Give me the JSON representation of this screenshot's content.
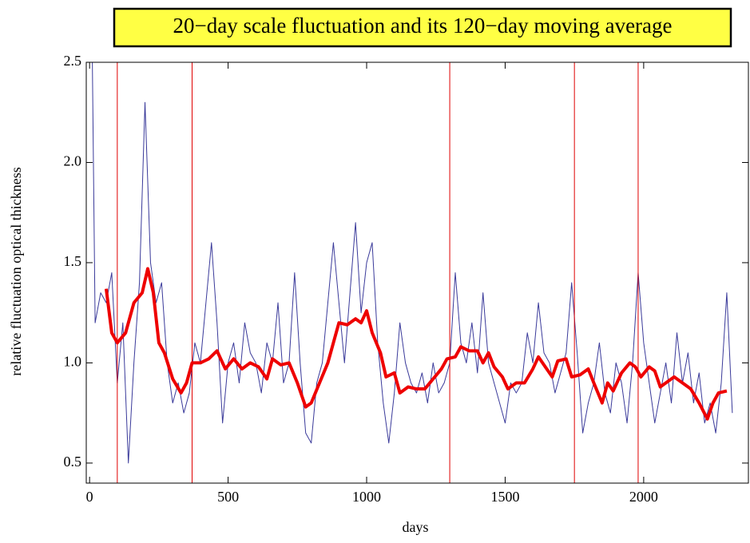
{
  "chart_data": {
    "type": "line",
    "title": "20−day scale fluctuation and its 120−day moving average",
    "xlabel": "days",
    "ylabel": "relative fluctuation optical thickness",
    "xlim": [
      -12,
      2378
    ],
    "ylim": [
      0.4,
      2.5
    ],
    "xticks": [
      0,
      500,
      1000,
      1500,
      2000
    ],
    "yticks": [
      0.5,
      {
        "value": 1.0,
        "label": "1.0"
      },
      1.5,
      {
        "value": 2.0,
        "label": "2.0"
      },
      2.5
    ],
    "vlines": [
      100,
      370,
      1300,
      1750,
      1980
    ],
    "vline_color": "#e00000",
    "series": [
      {
        "color": "#3a3a9a",
        "width": 1,
        "x": [
          10,
          20,
          40,
          60,
          80,
          100,
          120,
          140,
          160,
          180,
          200,
          220,
          240,
          260,
          280,
          300,
          320,
          340,
          360,
          380,
          400,
          420,
          440,
          460,
          480,
          500,
          520,
          540,
          560,
          580,
          600,
          620,
          640,
          660,
          680,
          700,
          720,
          740,
          760,
          780,
          800,
          820,
          840,
          860,
          880,
          900,
          920,
          940,
          960,
          980,
          1000,
          1020,
          1040,
          1060,
          1080,
          1100,
          1120,
          1140,
          1160,
          1180,
          1200,
          1220,
          1240,
          1260,
          1280,
          1300,
          1320,
          1340,
          1360,
          1380,
          1400,
          1420,
          1440,
          1460,
          1480,
          1500,
          1520,
          1540,
          1560,
          1580,
          1600,
          1620,
          1640,
          1660,
          1680,
          1700,
          1720,
          1740,
          1760,
          1780,
          1800,
          1820,
          1840,
          1860,
          1880,
          1900,
          1920,
          1940,
          1960,
          1980,
          2000,
          2020,
          2040,
          2060,
          2080,
          2100,
          2120,
          2140,
          2160,
          2180,
          2200,
          2220,
          2240,
          2260,
          2280,
          2300,
          2320
        ],
        "values": [
          2.5,
          1.2,
          1.35,
          1.3,
          1.45,
          0.9,
          1.2,
          0.5,
          1.0,
          1.4,
          2.3,
          1.5,
          1.3,
          1.4,
          1.0,
          0.8,
          0.9,
          0.75,
          0.85,
          1.1,
          1.0,
          1.3,
          1.6,
          1.2,
          0.7,
          1.0,
          1.1,
          0.9,
          1.2,
          1.05,
          1.0,
          0.85,
          1.1,
          1.0,
          1.3,
          0.9,
          1.0,
          1.45,
          1.0,
          0.65,
          0.6,
          0.9,
          1.0,
          1.3,
          1.6,
          1.3,
          1.0,
          1.35,
          1.7,
          1.25,
          1.5,
          1.6,
          1.1,
          0.8,
          0.6,
          0.85,
          1.2,
          1.0,
          0.9,
          0.85,
          0.95,
          0.8,
          1.0,
          0.85,
          0.9,
          1.0,
          1.45,
          1.1,
          1.0,
          1.2,
          0.95,
          1.35,
          1.0,
          0.9,
          0.8,
          0.7,
          0.9,
          0.85,
          0.9,
          1.15,
          1.0,
          1.3,
          1.05,
          1.0,
          0.85,
          0.95,
          1.05,
          1.4,
          1.05,
          0.65,
          0.8,
          0.9,
          1.1,
          0.85,
          0.75,
          1.0,
          0.9,
          0.7,
          1.0,
          1.45,
          1.1,
          0.9,
          0.7,
          0.85,
          1.0,
          0.8,
          1.15,
          0.9,
          1.05,
          0.8,
          0.95,
          0.7,
          0.8,
          0.65,
          0.9,
          1.35,
          0.75
        ]
      },
      {
        "color": "#ee0000",
        "width": 4,
        "x": [
          60,
          80,
          100,
          130,
          160,
          190,
          210,
          230,
          250,
          270,
          300,
          330,
          350,
          370,
          400,
          430,
          460,
          490,
          520,
          550,
          580,
          610,
          640,
          660,
          690,
          720,
          750,
          780,
          800,
          830,
          860,
          880,
          900,
          930,
          960,
          980,
          1000,
          1020,
          1050,
          1070,
          1100,
          1120,
          1150,
          1180,
          1210,
          1240,
          1270,
          1290,
          1320,
          1340,
          1370,
          1400,
          1420,
          1440,
          1460,
          1490,
          1510,
          1540,
          1570,
          1600,
          1620,
          1650,
          1670,
          1690,
          1720,
          1740,
          1770,
          1800,
          1820,
          1850,
          1870,
          1890,
          1920,
          1950,
          1970,
          1990,
          2020,
          2040,
          2060,
          2090,
          2110,
          2140,
          2170,
          2200,
          2230,
          2250,
          2270,
          2300
        ],
        "values": [
          1.37,
          1.15,
          1.1,
          1.15,
          1.3,
          1.35,
          1.47,
          1.35,
          1.1,
          1.05,
          0.92,
          0.85,
          0.9,
          1.0,
          1.0,
          1.02,
          1.06,
          0.97,
          1.02,
          0.97,
          1.0,
          0.98,
          0.92,
          1.02,
          0.99,
          1.0,
          0.9,
          0.78,
          0.8,
          0.9,
          1.0,
          1.1,
          1.2,
          1.19,
          1.22,
          1.2,
          1.26,
          1.15,
          1.05,
          0.93,
          0.95,
          0.85,
          0.88,
          0.87,
          0.87,
          0.92,
          0.97,
          1.02,
          1.03,
          1.08,
          1.06,
          1.06,
          1.0,
          1.05,
          0.98,
          0.93,
          0.87,
          0.9,
          0.9,
          0.97,
          1.03,
          0.97,
          0.93,
          1.01,
          1.02,
          0.93,
          0.94,
          0.97,
          0.9,
          0.8,
          0.9,
          0.86,
          0.95,
          1.0,
          0.98,
          0.93,
          0.98,
          0.96,
          0.88,
          0.91,
          0.93,
          0.9,
          0.87,
          0.8,
          0.72,
          0.8,
          0.85,
          0.86
        ]
      }
    ]
  }
}
